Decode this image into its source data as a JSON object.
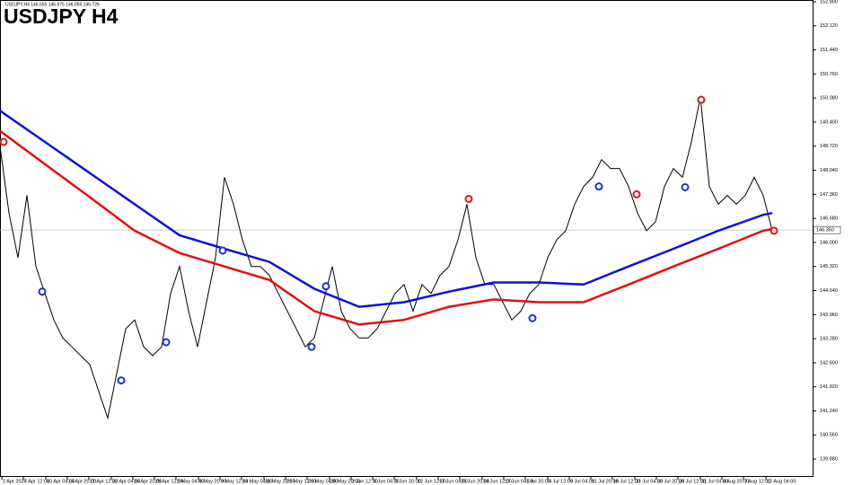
{
  "chart_data": {
    "type": "line",
    "title": "USDJPY H4",
    "subtitle": "USDJPY,H4 146.555 146.675 146.055 146.726",
    "xlim": [
      0,
      90.5
    ],
    "ylim": [
      139.4,
      152.85
    ],
    "yticks": [
      {
        "value": 139.88,
        "label": "139.880"
      },
      {
        "value": 140.56,
        "label": "140.560"
      },
      {
        "value": 141.24,
        "label": "141.240"
      },
      {
        "value": 141.92,
        "label": "141.920"
      },
      {
        "value": 142.6,
        "label": "142.600"
      },
      {
        "value": 143.28,
        "label": "143.280"
      },
      {
        "value": 143.96,
        "label": "143.960"
      },
      {
        "value": 144.64,
        "label": "144.640"
      },
      {
        "value": 145.32,
        "label": "145.320"
      },
      {
        "value": 146,
        "label": "146.000"
      },
      {
        "value": 146.68,
        "label": "146.680"
      },
      {
        "value": 147.36,
        "label": "147.360"
      },
      {
        "value": 148.04,
        "label": "148.040"
      },
      {
        "value": 148.72,
        "label": "148.720"
      },
      {
        "value": 149.4,
        "label": "149.400"
      },
      {
        "value": 150.08,
        "label": "150.080"
      },
      {
        "value": 150.76,
        "label": "150.760"
      },
      {
        "value": 151.44,
        "label": "151.440"
      },
      {
        "value": 152.12,
        "label": "152.120"
      },
      {
        "value": 152.8,
        "label": "152.800"
      }
    ],
    "xticks": [
      {
        "value": 0.2,
        "label": "2 Apr 2025"
      },
      {
        "value": 2.6,
        "label": "7 Apr 12:00"
      },
      {
        "value": 5.1,
        "label": "10 Apr 04:00"
      },
      {
        "value": 7.5,
        "label": "14 Apr 20:00"
      },
      {
        "value": 9.9,
        "label": "17 Apr 12:00"
      },
      {
        "value": 12.4,
        "label": "22 Apr 04:00"
      },
      {
        "value": 14.8,
        "label": "24 Apr 20:00"
      },
      {
        "value": 17.2,
        "label": "29 Apr 12:00"
      },
      {
        "value": 19.6,
        "label": "2 May 04:00"
      },
      {
        "value": 22.1,
        "label": "6 May 20:00"
      },
      {
        "value": 24.5,
        "label": "9 May 12:00"
      },
      {
        "value": 26.9,
        "label": "14 May 04:00"
      },
      {
        "value": 29.4,
        "label": "16 May 20:00"
      },
      {
        "value": 31.8,
        "label": "21 May 12:00"
      },
      {
        "value": 34.2,
        "label": "26 May 04:00"
      },
      {
        "value": 36.7,
        "label": "28 May 20:00"
      },
      {
        "value": 39.1,
        "label": "2 Jun 12:00"
      },
      {
        "value": 41.5,
        "label": "5 Jun 04:00"
      },
      {
        "value": 43.9,
        "label": "9 Jun 20:00"
      },
      {
        "value": 46.4,
        "label": "12 Jun 12:00"
      },
      {
        "value": 48.8,
        "label": "17 Jun 04:00"
      },
      {
        "value": 51.2,
        "label": "19 Jun 20:00"
      },
      {
        "value": 53.7,
        "label": "24 Jun 12:00"
      },
      {
        "value": 56.1,
        "label": "27 Jun 04:00"
      },
      {
        "value": 58.5,
        "label": "1 Jul 20:00"
      },
      {
        "value": 61,
        "label": "4 Jul 12:00"
      },
      {
        "value": 63.4,
        "label": "9 Jul 04:00"
      },
      {
        "value": 65.8,
        "label": "11 Jul 20:00"
      },
      {
        "value": 68.2,
        "label": "16 Jul 12:00"
      },
      {
        "value": 70.7,
        "label": "21 Jul 04:00"
      },
      {
        "value": 73.1,
        "label": "23 Jul 20:00"
      },
      {
        "value": 75.5,
        "label": "28 Jul 12:00"
      },
      {
        "value": 78,
        "label": "31 Jul 04:00"
      },
      {
        "value": 80.4,
        "label": "4 Aug 20:00"
      },
      {
        "value": 82.8,
        "label": "7 Aug 12:00"
      },
      {
        "value": 85.3,
        "label": "12 Aug 04:00"
      }
    ],
    "current_price": {
      "value": 146.35,
      "label": "146.350"
    },
    "series": [
      {
        "color": "#000000",
        "x": [
          0,
          1,
          2,
          3,
          4,
          5,
          6,
          7,
          8,
          9,
          10,
          11,
          12,
          13,
          14,
          15,
          16,
          17,
          18,
          19,
          20,
          21,
          22,
          23,
          24,
          25,
          26,
          27,
          28,
          29,
          30,
          31,
          32,
          33,
          34,
          35,
          36,
          37,
          38,
          39,
          40,
          41,
          42,
          43,
          44,
          45,
          46,
          47,
          48,
          49,
          50,
          51,
          52,
          53,
          54,
          55,
          56,
          57,
          58,
          59,
          60,
          61,
          62,
          63,
          64,
          65,
          66,
          67,
          68,
          69,
          70,
          71,
          72,
          73,
          74,
          75,
          76,
          77,
          78,
          79,
          80,
          81,
          82,
          83,
          84,
          85,
          86
        ],
        "values": [
          148.72,
          146.83,
          145.57,
          147.33,
          145.32,
          144.56,
          143.81,
          143.3,
          143.05,
          142.8,
          142.55,
          141.79,
          141.04,
          142.3,
          143.56,
          143.81,
          143.05,
          142.8,
          143.05,
          144.56,
          145.32,
          144.06,
          143.05,
          144.31,
          145.57,
          147.84,
          147.08,
          146.07,
          145.32,
          145.32,
          145.07,
          144.56,
          144.06,
          143.56,
          143.05,
          143.3,
          144.31,
          145.32,
          144.06,
          143.56,
          143.3,
          143.3,
          143.56,
          144.06,
          144.56,
          144.81,
          144.06,
          144.81,
          144.56,
          145.07,
          145.32,
          146.07,
          147.08,
          145.57,
          144.81,
          144.81,
          144.31,
          143.81,
          144.06,
          144.56,
          144.81,
          145.57,
          146.07,
          146.33,
          147.08,
          147.58,
          147.84,
          148.34,
          148.09,
          148.09,
          147.58,
          146.83,
          146.33,
          146.58,
          147.58,
          148.09,
          147.84,
          148.84,
          150.1,
          147.58,
          147.08,
          147.33,
          147.08,
          147.33,
          147.84,
          147.33,
          146.33
        ]
      },
      {
        "color": "#1010d8",
        "x": [
          0,
          5,
          10,
          15,
          20,
          25,
          30,
          35,
          40,
          45,
          50,
          55,
          60,
          65,
          70,
          75,
          80,
          85,
          86
        ],
        "values": [
          149.72,
          148.84,
          147.96,
          147.08,
          146.2,
          145.82,
          145.45,
          144.69,
          144.18,
          144.31,
          144.61,
          144.87,
          144.87,
          144.81,
          145.32,
          145.82,
          146.33,
          146.78,
          146.83
        ]
      },
      {
        "color": "#e01010",
        "x": [
          0,
          5,
          10,
          15,
          20,
          25,
          30,
          35,
          40,
          45,
          50,
          55,
          60,
          65,
          70,
          75,
          80,
          85,
          86
        ],
        "values": [
          149.15,
          148.21,
          147.28,
          146.33,
          145.7,
          145.32,
          144.94,
          144.06,
          143.68,
          143.81,
          144.18,
          144.39,
          144.31,
          144.31,
          144.81,
          145.32,
          145.82,
          146.33,
          146.38
        ]
      }
    ],
    "buy_signals": {
      "color": "#1e32c8",
      "x": [
        4.7,
        13.5,
        18.5,
        24.8,
        34.7,
        36.3,
        59.3,
        66.7,
        76.3
      ],
      "y": [
        144.61,
        142.1,
        143.18,
        145.77,
        143.05,
        144.76,
        143.86,
        147.58,
        147.56
      ]
    },
    "sell_signals": {
      "color": "#d81818",
      "x": [
        0.4,
        52.2,
        70.9,
        78.1,
        86.2
      ],
      "y": [
        148.84,
        147.23,
        147.36,
        150.03,
        146.33
      ]
    }
  }
}
